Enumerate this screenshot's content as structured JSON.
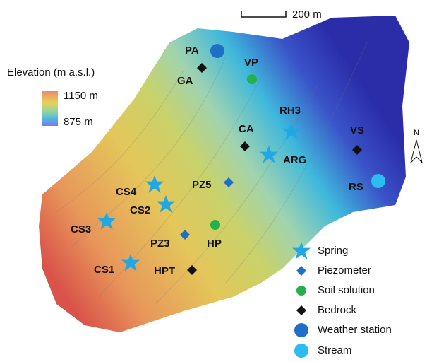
{
  "scale_bar": "200 m",
  "elevation_legend": {
    "title": "Elevation (m a.s.l.)",
    "max": "1150 m",
    "min": "875 m"
  },
  "north": "N",
  "sites": [
    "PA",
    "GA",
    "VP",
    "RH3",
    "CA",
    "ARG",
    "VS",
    "RS",
    "PZ5",
    "CS4",
    "CS2",
    "CS3",
    "PZ3",
    "HP",
    "CS1",
    "HPT"
  ],
  "legend": [
    "Spring",
    "Piezometer",
    "Soil solution",
    "Bedrock",
    "Weather station",
    "Stream"
  ]
}
